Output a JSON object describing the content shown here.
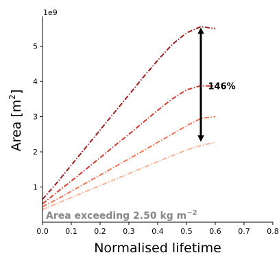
{
  "chart_data": {
    "type": "line",
    "xlabel": "Normalised lifetime",
    "ylabel_main": "Area [m",
    "ylabel_sup": "2",
    "ylabel_tail": "]",
    "y_offset_label": "1e9",
    "xlim": [
      0.0,
      0.8
    ],
    "ylim": [
      0.0,
      5.85
    ],
    "y_scale_multiplier": 1000000000,
    "x_ticks": [
      0.0,
      0.1,
      0.2,
      0.3,
      0.4,
      0.5,
      0.6,
      0.7,
      0.8
    ],
    "x_tick_labels": [
      "0.0",
      "0.1",
      "0.2",
      "0.3",
      "0.4",
      "0.5",
      "0.6",
      "0.7",
      "0.8"
    ],
    "y_ticks": [
      1,
      2,
      3,
      4,
      5
    ],
    "y_tick_labels": [
      "1",
      "2",
      "3",
      "4",
      "5"
    ],
    "grid": false,
    "inset_text_main": "Area exceeding 2.50 kg m",
    "inset_text_sup": "−2",
    "series": [
      {
        "color": "#9b1b1e",
        "x": [
          0.0,
          0.05,
          0.1,
          0.15,
          0.2,
          0.25,
          0.3,
          0.35,
          0.4,
          0.45,
          0.5,
          0.55,
          0.6
        ],
        "values": [
          0.65,
          1.12,
          1.62,
          2.12,
          2.62,
          3.12,
          3.62,
          4.12,
          4.6,
          5.05,
          5.38,
          5.56,
          5.5
        ]
      },
      {
        "color": "#d03a2f",
        "x": [
          0.0,
          0.05,
          0.1,
          0.15,
          0.2,
          0.25,
          0.3,
          0.35,
          0.4,
          0.45,
          0.5,
          0.55,
          0.6
        ],
        "values": [
          0.52,
          0.85,
          1.17,
          1.5,
          1.83,
          2.17,
          2.5,
          2.84,
          3.18,
          3.5,
          3.76,
          3.88,
          3.87
        ]
      },
      {
        "color": "#f07453",
        "x": [
          0.0,
          0.05,
          0.1,
          0.15,
          0.2,
          0.25,
          0.3,
          0.35,
          0.4,
          0.45,
          0.5,
          0.55,
          0.6
        ],
        "values": [
          0.44,
          0.65,
          0.88,
          1.11,
          1.34,
          1.57,
          1.8,
          2.03,
          2.27,
          2.5,
          2.74,
          2.95,
          3.0
        ]
      },
      {
        "color": "#f9b195",
        "x": [
          0.0,
          0.05,
          0.1,
          0.15,
          0.2,
          0.25,
          0.3,
          0.35,
          0.4,
          0.45,
          0.5,
          0.55,
          0.6
        ],
        "values": [
          0.36,
          0.53,
          0.7,
          0.87,
          1.04,
          1.21,
          1.38,
          1.55,
          1.72,
          1.89,
          2.05,
          2.18,
          2.27
        ]
      }
    ],
    "annotation": {
      "label": "146%",
      "arrow_x": 0.55,
      "arrow_y_top": 5.56,
      "arrow_y_bottom": 2.26,
      "label_anchor_x": 0.575,
      "label_anchor_y": 3.88
    }
  }
}
